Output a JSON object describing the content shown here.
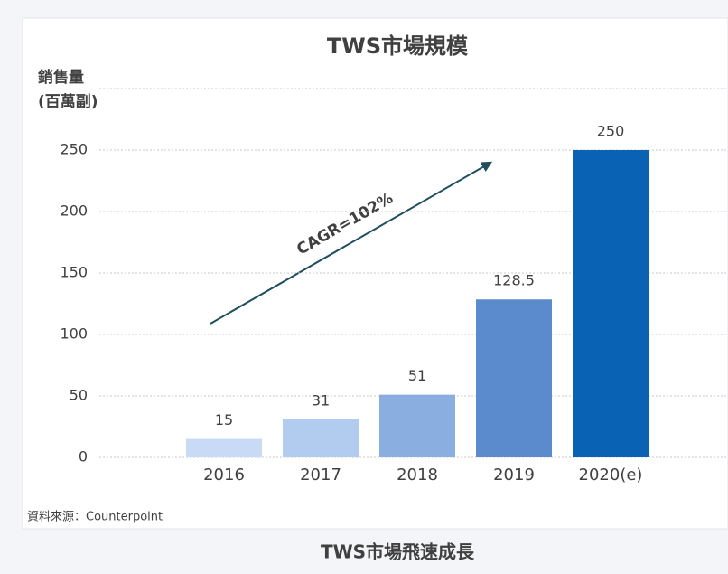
{
  "chart_data": {
    "type": "bar",
    "title": "TWS市場規模",
    "y_label": [
      "銷售量",
      "(百萬副)"
    ],
    "categories": [
      "2016",
      "2017",
      "2018",
      "2019",
      "2020(e)"
    ],
    "values": [
      15,
      31,
      51,
      128.5,
      250
    ],
    "colors": [
      "#c9daf6",
      "#b2ccef",
      "#8aaedf",
      "#5b8bcd",
      "#0a62b4"
    ],
    "ylim": [
      0,
      300
    ],
    "yticks": [
      0,
      50,
      100,
      150,
      200,
      250
    ],
    "grid": true,
    "annotation": "CAGR=102%",
    "source": "資料來源：Counterpoint",
    "caption": "TWS市場飛速成長"
  }
}
